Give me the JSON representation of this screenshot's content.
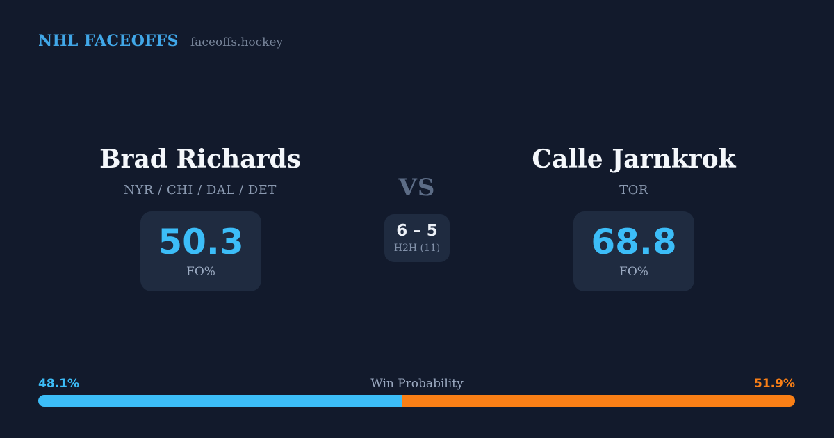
{
  "header": {
    "brand": "NHL FACEOFFS",
    "site": "faceoffs.hockey"
  },
  "matchup": {
    "vs_label": "VS",
    "player_left": {
      "name": "Brad Richards",
      "teams": "NYR / CHI / DAL / DET",
      "stat_value": "50.3",
      "stat_label": "FO%"
    },
    "player_right": {
      "name": "Calle Jarnkrok",
      "teams": "TOR",
      "stat_value": "68.8",
      "stat_label": "FO%"
    },
    "h2h": {
      "score": "6 – 5",
      "label": "H2H (11)"
    }
  },
  "win_probability": {
    "label": "Win Probability",
    "left_pct_text": "48.1%",
    "right_pct_text": "51.9%",
    "left_value": 48.1,
    "right_value": 51.9,
    "left_color": "#3cbdf8",
    "right_color": "#f97f16"
  },
  "colors": {
    "background": "#121a2c",
    "card_background": "#1f2b40",
    "accent_blue": "#3cbdf8",
    "accent_orange": "#f97f16",
    "brand_blue": "#41a7e8",
    "text_primary": "#f4f7fb",
    "text_muted": "#8b9ab1"
  },
  "chart_data": [
    {
      "type": "bar",
      "title": "Win Probability",
      "categories": [
        "Brad Richards",
        "Calle Jarnkrok"
      ],
      "values": [
        48.1,
        51.9
      ],
      "unit": "%",
      "layout": "horizontal-stacked-single-bar",
      "colors": [
        "#3cbdf8",
        "#f97f16"
      ],
      "xlabel": "",
      "ylabel": "",
      "xlim": [
        0,
        100
      ]
    },
    {
      "type": "bar",
      "title": "Faceoff Percentage (FO%)",
      "categories": [
        "Brad Richards",
        "Calle Jarnkrok"
      ],
      "values": [
        50.3,
        68.8
      ],
      "unit": "%"
    },
    {
      "type": "bar",
      "title": "Head-to-Head (11 faceoffs)",
      "categories": [
        "Brad Richards",
        "Calle Jarnkrok"
      ],
      "values": [
        6,
        5
      ]
    }
  ]
}
